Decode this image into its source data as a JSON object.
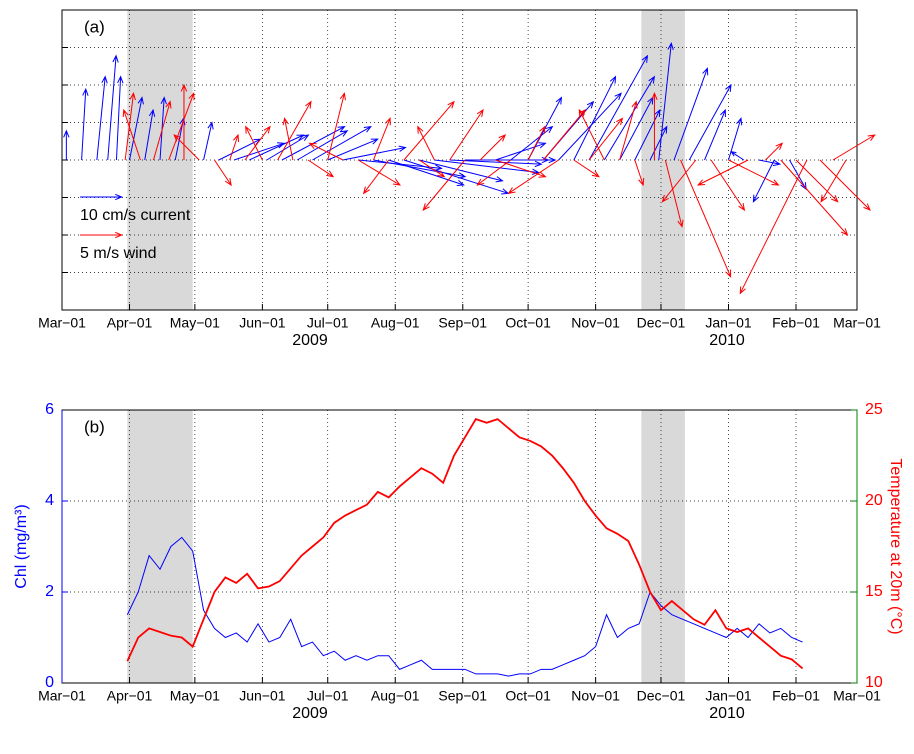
{
  "chart_data": [
    {
      "type": "quiver",
      "panel_label": "(a)",
      "xlim": [
        "2009-03-01",
        "2010-03-01"
      ],
      "xticks": [
        {
          "value": "2009-03-01",
          "label": "Mar−01"
        },
        {
          "value": "2009-04-01",
          "label": "Apr−01"
        },
        {
          "value": "2009-05-01",
          "label": "May−01"
        },
        {
          "value": "2009-06-01",
          "label": "Jun−01"
        },
        {
          "value": "2009-07-01",
          "label": "Jul−01"
        },
        {
          "value": "2009-08-01",
          "label": "Aug−01"
        },
        {
          "value": "2009-09-01",
          "label": "Sep−01"
        },
        {
          "value": "2009-10-01",
          "label": "Oct−01"
        },
        {
          "value": "2009-11-01",
          "label": "Nov−01"
        },
        {
          "value": "2009-12-01",
          "label": "Dec−01"
        },
        {
          "value": "2010-01-01",
          "label": "Jan−01"
        },
        {
          "value": "2010-02-01",
          "label": "Feb−01"
        },
        {
          "value": "2010-03-01",
          "label": "Mar−01"
        }
      ],
      "years": [
        "2009",
        "2010"
      ],
      "ylim": [
        -36,
        36
      ],
      "yticks": [
        -27,
        -18,
        -9,
        0,
        9,
        18,
        27
      ],
      "grid": true,
      "shaded_spans": [
        [
          "2009-03-31",
          "2009-04-30"
        ],
        [
          "2009-11-22",
          "2009-12-12"
        ]
      ],
      "series": [
        {
          "name": "10 cm/s current",
          "reference": 10,
          "color": "#0000ff",
          "x": [
            "2009-03-03",
            "2009-03-10",
            "2009-03-17",
            "2009-03-22",
            "2009-03-26",
            "2009-04-01",
            "2009-04-08",
            "2009-04-15",
            "2009-04-22",
            "2009-05-05",
            "2009-05-12",
            "2009-05-19",
            "2009-05-26",
            "2009-06-03",
            "2009-06-10",
            "2009-06-17",
            "2009-06-24",
            "2009-07-01",
            "2009-07-08",
            "2009-07-15",
            "2009-07-22",
            "2009-07-29",
            "2009-08-05",
            "2009-08-12",
            "2009-08-19",
            "2009-08-26",
            "2009-09-02",
            "2009-09-09",
            "2009-09-16",
            "2009-09-23",
            "2009-10-01",
            "2009-10-08",
            "2009-10-15",
            "2009-10-22",
            "2009-10-29",
            "2009-11-05",
            "2009-11-12",
            "2009-11-19",
            "2009-11-26",
            "2009-11-30",
            "2009-12-07",
            "2009-12-14",
            "2009-12-21",
            "2010-01-01",
            "2010-01-08",
            "2010-01-15",
            "2010-01-22",
            "2010-01-29"
          ],
          "u": [
            0,
            1,
            2,
            2,
            1,
            3,
            2,
            1,
            2,
            2,
            10,
            12,
            13,
            10,
            15,
            12,
            14,
            12,
            15,
            20,
            22,
            18,
            25,
            20,
            25,
            22,
            20,
            18,
            12,
            10,
            8,
            12,
            15,
            10,
            14,
            12,
            8,
            6,
            4,
            3,
            8,
            10,
            5,
            3,
            -3,
            5,
            -5,
            4
          ],
          "v": [
            7,
            17,
            20,
            25,
            20,
            15,
            12,
            15,
            10,
            9,
            5,
            4,
            6,
            6,
            8,
            7,
            8,
            5,
            3,
            -2,
            -4,
            -6,
            -8,
            -5,
            -3,
            -1,
            0,
            0,
            4,
            8,
            15,
            14,
            16,
            20,
            25,
            20,
            15,
            12,
            8,
            28,
            22,
            18,
            12,
            10,
            2,
            -1,
            -10,
            -7
          ]
        },
        {
          "name": "5 m/s wind",
          "reference": 5,
          "color": "#ff0000",
          "x": [
            "2009-03-30",
            "2009-04-06",
            "2009-04-12",
            "2009-04-19",
            "2009-04-26",
            "2009-05-03",
            "2009-05-10",
            "2009-05-17",
            "2009-05-24",
            "2009-06-01",
            "2009-06-08",
            "2009-06-15",
            "2009-06-22",
            "2009-07-01",
            "2009-07-08",
            "2009-07-15",
            "2009-07-22",
            "2009-07-29",
            "2009-08-05",
            "2009-08-12",
            "2009-08-19",
            "2009-08-26",
            "2009-09-02",
            "2009-09-09",
            "2009-09-16",
            "2009-09-23",
            "2009-10-01",
            "2009-10-08",
            "2009-10-15",
            "2009-10-22",
            "2009-10-29",
            "2009-11-05",
            "2009-11-12",
            "2009-11-19",
            "2009-11-28",
            "2009-12-03",
            "2009-12-10",
            "2009-12-17",
            "2009-12-24",
            "2010-01-01",
            "2010-01-10",
            "2010-01-18",
            "2010-01-25",
            "2010-02-01",
            "2010-02-06",
            "2010-02-12",
            "2010-02-18",
            "2010-02-24"
          ],
          "u": [
            1,
            -2,
            2,
            3,
            0,
            -3,
            2,
            1,
            3,
            -2,
            4,
            -1,
            3,
            2,
            -4,
            5,
            2,
            -3,
            6,
            3,
            -2,
            4,
            -5,
            3,
            6,
            -4,
            2,
            5,
            -6,
            3,
            4,
            -3,
            2,
            1,
            0,
            2,
            6,
            -4,
            4,
            6,
            -6,
            2,
            8,
            5,
            -8,
            6,
            5,
            -3
          ],
          "v": [
            8,
            6,
            7,
            8,
            9,
            3,
            -3,
            3,
            4,
            4,
            7,
            5,
            -2,
            8,
            2,
            -3,
            5,
            -4,
            7,
            -2,
            4,
            6,
            -6,
            3,
            -2,
            -3,
            4,
            6,
            -4,
            -2,
            5,
            6,
            7,
            -3,
            8,
            -8,
            -14,
            -5,
            -6,
            -3,
            -3,
            2,
            -9,
            -5,
            -16,
            -6,
            3,
            -5
          ]
        }
      ]
    },
    {
      "type": "line",
      "panel_label": "(b)",
      "xlim": [
        "2009-03-01",
        "2010-03-01"
      ],
      "xticks": [
        {
          "value": "2009-03-01",
          "label": "Mar−01"
        },
        {
          "value": "2009-04-01",
          "label": "Apr−01"
        },
        {
          "value": "2009-05-01",
          "label": "May−01"
        },
        {
          "value": "2009-06-01",
          "label": "Jun−01"
        },
        {
          "value": "2009-07-01",
          "label": "Jul−01"
        },
        {
          "value": "2009-08-01",
          "label": "Aug−01"
        },
        {
          "value": "2009-09-01",
          "label": "Sep−01"
        },
        {
          "value": "2009-10-01",
          "label": "Oct−01"
        },
        {
          "value": "2009-11-01",
          "label": "Nov−01"
        },
        {
          "value": "2009-12-01",
          "label": "Dec−01"
        },
        {
          "value": "2010-01-01",
          "label": "Jan−01"
        },
        {
          "value": "2010-02-01",
          "label": "Feb−01"
        },
        {
          "value": "2010-03-01",
          "label": "Mar−01"
        }
      ],
      "years": [
        "2009",
        "2010"
      ],
      "y_label": "Chl (mg/m³)",
      "y2_label": "Temperature at 20m (°C)",
      "ylim": [
        0,
        6
      ],
      "yticks": [
        0,
        2,
        4,
        6
      ],
      "y_axis_color": "#0000ff",
      "y2lim": [
        10,
        25
      ],
      "y2ticks": [
        10,
        15,
        20,
        25
      ],
      "y2_axis_color": "#008000",
      "y2_label_color": "#ff0000",
      "grid": true,
      "shaded_spans": [
        [
          "2009-03-31",
          "2009-04-30"
        ],
        [
          "2009-11-22",
          "2009-12-12"
        ]
      ],
      "x": [
        "2009-03-31",
        "2009-04-05",
        "2009-04-10",
        "2009-04-15",
        "2009-04-20",
        "2009-04-25",
        "2009-04-30",
        "2009-05-05",
        "2009-05-10",
        "2009-05-15",
        "2009-05-20",
        "2009-05-25",
        "2009-05-30",
        "2009-06-04",
        "2009-06-09",
        "2009-06-14",
        "2009-06-19",
        "2009-06-24",
        "2009-06-29",
        "2009-07-04",
        "2009-07-09",
        "2009-07-14",
        "2009-07-19",
        "2009-07-24",
        "2009-07-29",
        "2009-08-03",
        "2009-08-08",
        "2009-08-13",
        "2009-08-18",
        "2009-08-23",
        "2009-08-28",
        "2009-09-02",
        "2009-09-07",
        "2009-09-12",
        "2009-09-17",
        "2009-09-22",
        "2009-09-27",
        "2009-10-02",
        "2009-10-07",
        "2009-10-12",
        "2009-10-17",
        "2009-10-22",
        "2009-10-27",
        "2009-11-01",
        "2009-11-06",
        "2009-11-11",
        "2009-11-16",
        "2009-11-21",
        "2009-11-26",
        "2009-12-01",
        "2009-12-06",
        "2009-12-11",
        "2009-12-16",
        "2009-12-21",
        "2009-12-26",
        "2009-12-31",
        "2010-01-05",
        "2010-01-10",
        "2010-01-15",
        "2010-01-20",
        "2010-01-25",
        "2010-01-30",
        "2010-02-04"
      ],
      "series": [
        {
          "color": "#0000ff",
          "axis": "y",
          "values": [
            1.5,
            2.0,
            2.8,
            2.5,
            3.0,
            3.2,
            2.9,
            1.6,
            1.2,
            1.0,
            1.1,
            0.9,
            1.3,
            0.9,
            1.0,
            1.4,
            0.8,
            0.9,
            0.6,
            0.7,
            0.5,
            0.6,
            0.5,
            0.6,
            0.6,
            0.3,
            0.4,
            0.5,
            0.3,
            0.3,
            0.3,
            0.3,
            0.2,
            0.2,
            0.2,
            0.15,
            0.2,
            0.2,
            0.3,
            0.3,
            0.4,
            0.5,
            0.6,
            0.8,
            1.5,
            1.0,
            1.2,
            1.3,
            2.0,
            1.7,
            1.5,
            1.4,
            1.3,
            1.2,
            1.1,
            1.0,
            1.2,
            1.0,
            1.3,
            1.1,
            1.2,
            1.0,
            0.9
          ]
        },
        {
          "color": "#ff0000",
          "axis": "y2",
          "values": [
            11.2,
            12.5,
            13.0,
            12.8,
            12.6,
            12.5,
            12.0,
            13.5,
            15.0,
            15.8,
            15.5,
            16.0,
            15.2,
            15.3,
            15.6,
            16.3,
            17.0,
            17.5,
            18.0,
            18.8,
            19.2,
            19.5,
            19.8,
            20.5,
            20.2,
            20.8,
            21.3,
            21.8,
            21.5,
            21.0,
            22.5,
            23.5,
            24.5,
            24.3,
            24.5,
            24.0,
            23.5,
            23.3,
            23.0,
            22.5,
            21.8,
            21.0,
            20.0,
            19.2,
            18.5,
            18.2,
            17.8,
            16.5,
            15.0,
            14.0,
            14.5,
            14.0,
            13.5,
            13.2,
            14.0,
            13.0,
            12.8,
            13.0,
            12.5,
            12.0,
            11.5,
            11.3,
            10.8
          ]
        }
      ]
    }
  ]
}
